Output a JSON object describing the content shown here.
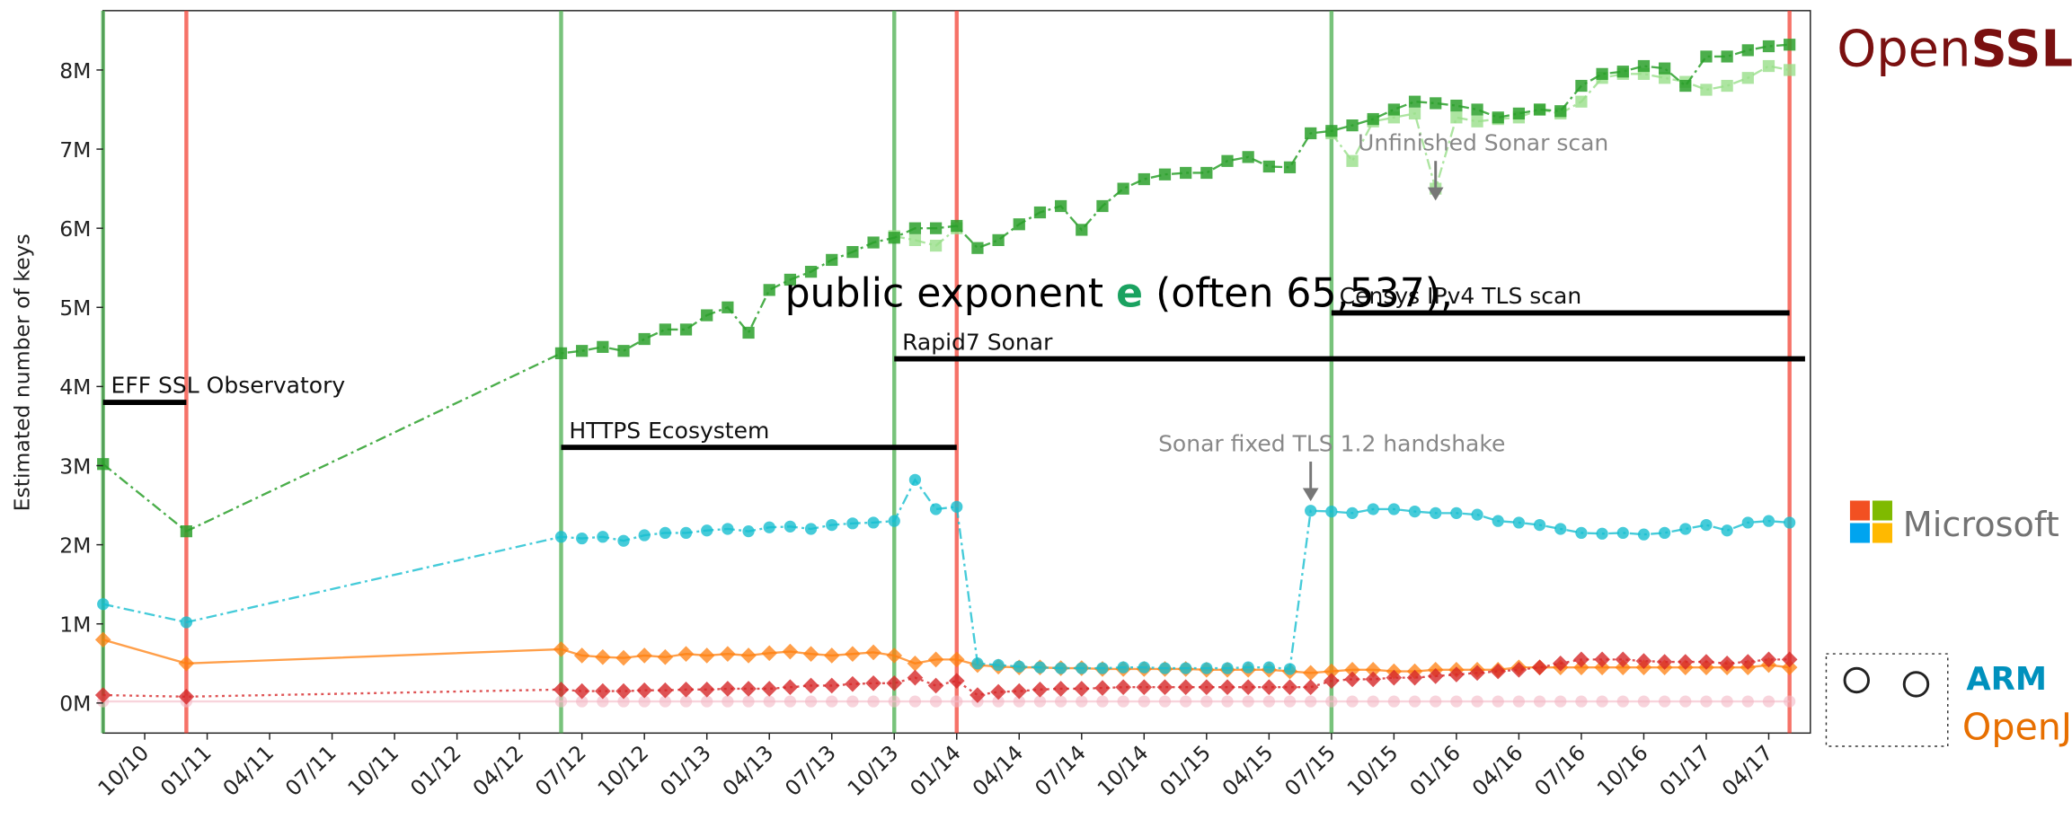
{
  "chart_data": {
    "type": "line",
    "ylabel": "Estimated number of keys",
    "x": [
      "08/10",
      "12/10",
      "06/12",
      "07/12",
      "08/12",
      "09/12",
      "10/12",
      "11/12",
      "12/12",
      "01/13",
      "02/13",
      "03/13",
      "04/13",
      "05/13",
      "06/13",
      "07/13",
      "08/13",
      "09/13",
      "10/13",
      "11/13",
      "12/13",
      "01/14",
      "02/14",
      "03/14",
      "04/14",
      "05/14",
      "06/14",
      "07/14",
      "08/14",
      "09/14",
      "10/14",
      "11/14",
      "12/14",
      "01/15",
      "02/15",
      "03/15",
      "04/15",
      "05/15",
      "06/15",
      "07/15",
      "08/15",
      "09/15",
      "10/15",
      "11/15",
      "12/15",
      "01/16",
      "02/16",
      "03/16",
      "04/16",
      "05/16",
      "06/16",
      "07/16",
      "08/16",
      "09/16",
      "10/16",
      "11/16",
      "12/16",
      "01/17",
      "02/17",
      "03/17",
      "04/17",
      "05/17"
    ],
    "series": [
      {
        "color": "#f3b8c4",
        "marker": "circle",
        "dash": "solid",
        "opacity": 0.6,
        "values": [
          0.02,
          0.02,
          0.02,
          0.02,
          0.02,
          0.02,
          0.02,
          0.02,
          0.02,
          0.02,
          0.02,
          0.02,
          0.02,
          0.02,
          0.02,
          0.02,
          0.02,
          0.02,
          0.02,
          0.02,
          0.02,
          0.02,
          0.02,
          0.02,
          0.02,
          0.02,
          0.02,
          0.02,
          0.02,
          0.02,
          0.02,
          0.02,
          0.02,
          0.02,
          0.02,
          0.02,
          0.02,
          0.02,
          0.02,
          0.02,
          0.02,
          0.02,
          0.02,
          0.02,
          0.02,
          0.02,
          0.02,
          0.02,
          0.02,
          0.02,
          0.02,
          0.02,
          0.02,
          0.02,
          0.02,
          0.02,
          0.02,
          0.02,
          0.02,
          0.02,
          0.02,
          0.02
        ]
      },
      {
        "color": "#ff7f0e",
        "marker": "diamond",
        "dash": "solid",
        "opacity": 0.75,
        "values": [
          0.8,
          0.5,
          0.68,
          0.6,
          0.58,
          0.57,
          0.6,
          0.58,
          0.62,
          0.6,
          0.62,
          0.6,
          0.63,
          0.65,
          0.62,
          0.6,
          0.62,
          0.64,
          0.6,
          0.5,
          0.55,
          0.55,
          0.48,
          0.46,
          0.45,
          0.45,
          0.44,
          0.44,
          0.43,
          0.43,
          0.43,
          0.43,
          0.43,
          0.42,
          0.42,
          0.42,
          0.42,
          0.4,
          0.38,
          0.4,
          0.42,
          0.42,
          0.4,
          0.4,
          0.42,
          0.42,
          0.42,
          0.42,
          0.45,
          0.45,
          0.45,
          0.45,
          0.45,
          0.45,
          0.45,
          0.45,
          0.45,
          0.45,
          0.45,
          0.45,
          0.48,
          0.45
        ]
      },
      {
        "color": "#d62728",
        "marker": "diamond",
        "dash": "dotted",
        "opacity": 0.8,
        "values": [
          0.1,
          0.08,
          0.17,
          0.15,
          0.15,
          0.15,
          0.16,
          0.16,
          0.17,
          0.17,
          0.18,
          0.18,
          0.18,
          0.2,
          0.22,
          0.22,
          0.24,
          0.25,
          0.25,
          0.32,
          0.22,
          0.28,
          0.1,
          0.14,
          0.15,
          0.17,
          0.18,
          0.18,
          0.19,
          0.2,
          0.2,
          0.2,
          0.2,
          0.2,
          0.2,
          0.2,
          0.2,
          0.2,
          0.2,
          0.28,
          0.3,
          0.3,
          0.32,
          0.32,
          0.34,
          0.36,
          0.38,
          0.4,
          0.42,
          0.45,
          0.5,
          0.55,
          0.55,
          0.55,
          0.53,
          0.52,
          0.52,
          0.52,
          0.5,
          0.52,
          0.55,
          0.55
        ]
      },
      {
        "color": "#17becf",
        "marker": "circle",
        "dash": "dashdot",
        "opacity": 0.8,
        "values": [
          1.25,
          1.02,
          2.1,
          2.08,
          2.1,
          2.05,
          2.12,
          2.15,
          2.15,
          2.18,
          2.2,
          2.17,
          2.22,
          2.23,
          2.2,
          2.25,
          2.27,
          2.28,
          2.3,
          2.82,
          2.45,
          2.48,
          0.5,
          0.48,
          0.46,
          0.45,
          0.44,
          0.44,
          0.44,
          0.45,
          0.45,
          0.44,
          0.44,
          0.44,
          0.44,
          0.45,
          0.45,
          0.43,
          2.43,
          2.42,
          2.4,
          2.45,
          2.45,
          2.42,
          2.4,
          2.4,
          2.38,
          2.3,
          2.28,
          2.25,
          2.2,
          2.15,
          2.14,
          2.15,
          2.13,
          2.15,
          2.2,
          2.25,
          2.18,
          2.28,
          2.3,
          2.28
        ]
      },
      {
        "color": "#98df8a",
        "marker": "square",
        "dash": "dashdot",
        "opacity": 0.8,
        "values": [
          null,
          null,
          null,
          null,
          null,
          null,
          null,
          null,
          null,
          null,
          null,
          null,
          null,
          null,
          null,
          null,
          null,
          null,
          5.9,
          5.85,
          5.78,
          6.0,
          null,
          null,
          null,
          null,
          null,
          null,
          null,
          null,
          null,
          null,
          null,
          null,
          null,
          null,
          null,
          null,
          null,
          7.2,
          6.85,
          7.35,
          7.4,
          7.45,
          6.5,
          7.4,
          7.35,
          7.38,
          7.4,
          7.5,
          7.45,
          7.6,
          7.9,
          7.95,
          7.95,
          7.9,
          7.85,
          7.75,
          7.8,
          7.9,
          8.05,
          8.0
        ]
      },
      {
        "color": "#2ca02c",
        "marker": "square",
        "dash": "dashdot",
        "opacity": 0.85,
        "values": [
          3.02,
          2.17,
          4.42,
          4.45,
          4.5,
          4.45,
          4.6,
          4.72,
          4.72,
          4.9,
          5.0,
          4.68,
          5.22,
          5.35,
          5.45,
          5.6,
          5.7,
          5.82,
          5.88,
          6.0,
          6.0,
          6.03,
          5.75,
          5.85,
          6.05,
          6.2,
          6.28,
          5.98,
          6.28,
          6.5,
          6.62,
          6.68,
          6.7,
          6.7,
          6.85,
          6.9,
          6.78,
          6.77,
          7.2,
          7.23,
          7.3,
          7.38,
          7.5,
          7.6,
          7.58,
          7.55,
          7.5,
          7.4,
          7.45,
          7.5,
          7.48,
          7.8,
          7.95,
          7.98,
          8.05,
          8.02,
          7.8,
          8.17,
          8.17,
          8.25,
          8.3,
          8.32
        ]
      }
    ],
    "xlim": [
      "08/10",
      "06/17"
    ],
    "xticks": [
      "10/10",
      "01/11",
      "04/11",
      "07/11",
      "10/11",
      "01/12",
      "04/12",
      "07/12",
      "10/12",
      "01/13",
      "04/13",
      "07/13",
      "10/13",
      "01/14",
      "04/14",
      "07/14",
      "10/14",
      "01/15",
      "04/15",
      "07/15",
      "10/15",
      "01/16",
      "04/16",
      "07/16",
      "10/16",
      "01/17",
      "04/17"
    ],
    "ylim": [
      -0.38,
      8.75
    ],
    "yticks": [
      {
        "value": 0,
        "label": "0M"
      },
      {
        "value": 1,
        "label": "1M"
      },
      {
        "value": 2,
        "label": "2M"
      },
      {
        "value": 3,
        "label": "3M"
      },
      {
        "value": 4,
        "label": "4M"
      },
      {
        "value": 5,
        "label": "5M"
      },
      {
        "value": 6,
        "label": "6M"
      },
      {
        "value": 7,
        "label": "7M"
      },
      {
        "value": 8,
        "label": "8M"
      }
    ],
    "vlines": [
      {
        "x": "08/10",
        "color": "#4caf50"
      },
      {
        "x": "12/10",
        "color": "#f44336"
      },
      {
        "x": "06/12",
        "color": "#4caf50"
      },
      {
        "x": "10/13",
        "color": "#4caf50"
      },
      {
        "x": "01/14",
        "color": "#f44336"
      },
      {
        "x": "07/15",
        "color": "#4caf50"
      },
      {
        "x": "05/17",
        "color": "#f44336"
      }
    ],
    "spans": [
      {
        "label": "EFF SSL Observatory",
        "x": [
          "08/10",
          "12/10"
        ],
        "y": 3.8
      },
      {
        "label": "HTTPS Ecosystem",
        "x": [
          "06/12",
          "01/14"
        ],
        "y": 3.23
      },
      {
        "label": "Rapid7 Sonar",
        "x": [
          "10/13",
          "06/17"
        ],
        "y": 4.35
      },
      {
        "label": "Censys IPv4 TLS scan",
        "x": [
          "07/15",
          "05/17"
        ],
        "y": 4.93
      }
    ],
    "arrows": [
      {
        "label": "Unfinished Sonar scan",
        "x": "12/15",
        "y": 6.35
      },
      {
        "label": "Sonar fixed TLS 1.2 handshake",
        "x": "06/15",
        "y": 2.55
      }
    ],
    "overlay": {
      "before": "public exponent ",
      "symbol": "e",
      "after": " (often 65,537),"
    }
  },
  "logos": {
    "openssl": [
      "Open",
      "SSL"
    ],
    "microsoft": "Microsoft",
    "arm": "ARM",
    "openjdk": "OpenJD"
  }
}
